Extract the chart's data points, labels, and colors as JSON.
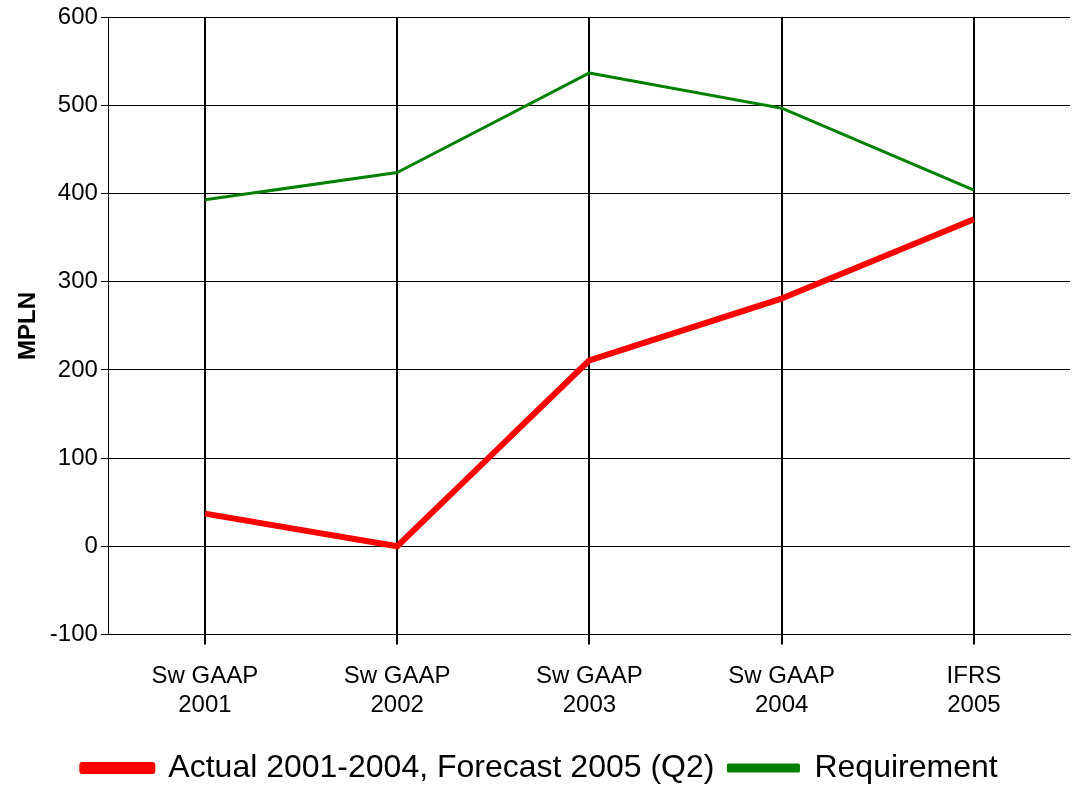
{
  "chart_data": {
    "type": "line",
    "ylabel": "MPLN",
    "categories": [
      "Sw GAAP\n2001",
      "Sw GAAP\n2002",
      "Sw GAAP\n2003",
      "Sw GAAP\n2004",
      "IFRS\n2005"
    ],
    "series": [
      {
        "name": "Actual 2001-2004, Forecast 2005 (Q2)",
        "color": "#ff0000",
        "values": [
          37,
          0,
          211,
          281,
          371
        ]
      },
      {
        "name": "Requirement",
        "color": "#008000",
        "values": [
          393,
          424,
          537,
          497,
          404
        ]
      }
    ],
    "ylim": [
      -100,
      600
    ],
    "yticks": [
      -100,
      0,
      100,
      200,
      300,
      400,
      500,
      600
    ],
    "grid": true,
    "legend": "bottom",
    "marker": "none",
    "line_style": "solid"
  }
}
